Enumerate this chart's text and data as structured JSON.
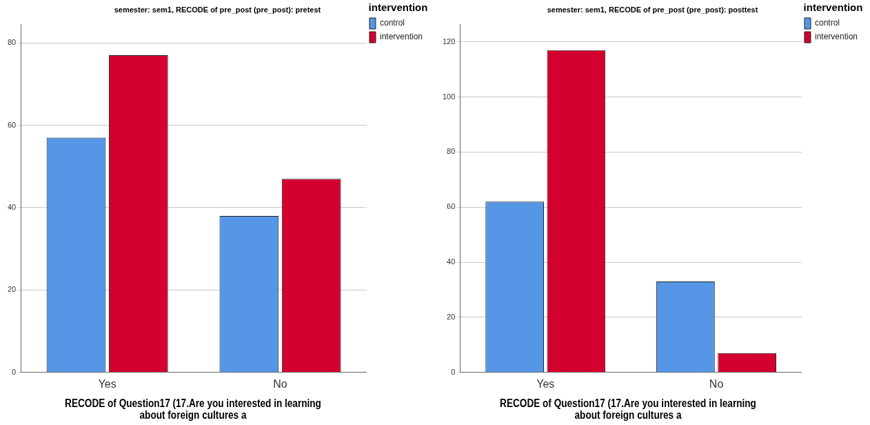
{
  "chart_data": [
    {
      "type": "bar",
      "title": "semester: sem1, RECODE of pre_post (pre_post): pretest",
      "xlabel": "RECODE of Question17 (17.Are you interested in learning about foreign cultures a",
      "legend_title": "intervention",
      "categories": [
        "Yes",
        "No"
      ],
      "series": [
        {
          "name": "control",
          "color": "#5596e6",
          "values": [
            57,
            38
          ]
        },
        {
          "name": "intervention",
          "color": "#d3002f",
          "values": [
            77,
            47
          ]
        }
      ],
      "ylim": [
        0,
        84.5
      ],
      "yticks": [
        0,
        20,
        40,
        60,
        80
      ],
      "grid": "y",
      "legend": "top right"
    },
    {
      "type": "bar",
      "title": "semester: sem1, RECODE of pre_post (pre_post): posttest",
      "xlabel": "RECODE of Question17 (17.Are you interested in learning about foreign cultures a",
      "legend_title": "intervention",
      "categories": [
        "Yes",
        "No"
      ],
      "series": [
        {
          "name": "control",
          "color": "#5596e6",
          "values": [
            62,
            33
          ]
        },
        {
          "name": "intervention",
          "color": "#d3002f",
          "values": [
            117,
            7
          ]
        }
      ],
      "ylim": [
        0,
        126.4
      ],
      "yticks": [
        0,
        20,
        40,
        60,
        80,
        100,
        120
      ],
      "grid": "y",
      "legend": "top right"
    }
  ]
}
